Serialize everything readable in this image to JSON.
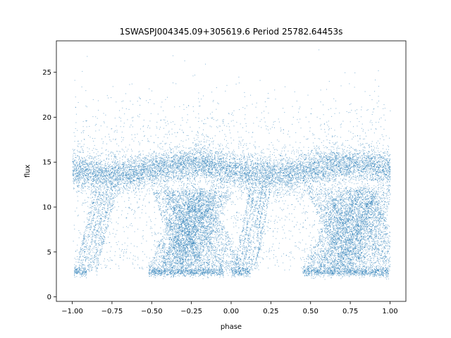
{
  "chart_data": {
    "type": "scatter",
    "title": "1SWASPJ004345.09+305619.6 Period 25782.64453s",
    "xlabel": "phase",
    "ylabel": "flux",
    "xlim": [
      -1.1,
      1.1
    ],
    "ylim": [
      -0.5,
      28.5
    ],
    "xticks": [
      -1.0,
      -0.75,
      -0.5,
      -0.25,
      0.0,
      0.25,
      0.5,
      0.75,
      1.0
    ],
    "xtick_labels": [
      "−1.00",
      "−0.75",
      "−0.50",
      "−0.25",
      "0.00",
      "0.25",
      "0.50",
      "0.75",
      "1.00"
    ],
    "yticks": [
      0,
      5,
      10,
      15,
      20,
      25
    ],
    "ytick_labels": [
      "0",
      "5",
      "10",
      "15",
      "20",
      "25"
    ],
    "point_color": "#1f77b4",
    "grid": false,
    "legend": "none",
    "series": [
      {
        "description_points": [
          {
            "x": -0.95,
            "y": 14.0
          },
          {
            "x": -0.75,
            "y": 14.8
          },
          {
            "x": -0.5,
            "y": 14.0
          },
          {
            "x": -0.25,
            "y": 13.6
          },
          {
            "x": 0.0,
            "y": 13.8
          },
          {
            "x": 0.25,
            "y": 14.8
          },
          {
            "x": 0.5,
            "y": 14.0
          },
          {
            "x": 0.75,
            "y": 13.6
          },
          {
            "x": 1.0,
            "y": 13.8
          },
          {
            "x": -0.97,
            "y": 2.8
          },
          {
            "x": -0.4,
            "y": 2.8
          },
          {
            "x": -0.2,
            "y": 2.8
          },
          {
            "x": 0.05,
            "y": 2.8
          },
          {
            "x": 0.6,
            "y": 2.8
          },
          {
            "x": 0.8,
            "y": 2.8
          },
          {
            "x": 0.97,
            "y": 2.8
          }
        ]
      }
    ]
  }
}
